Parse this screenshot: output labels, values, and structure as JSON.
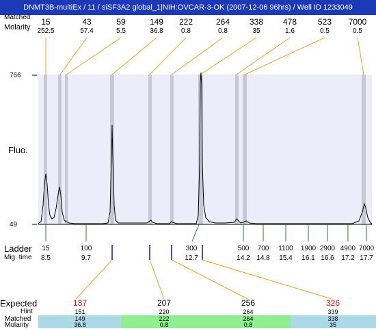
{
  "title": "DNMT3B-multiEx / 11  / siSF3A2 global_1|NIH:OVCAR-3-OK (2007-12-06 96hrs) / Well ID 1233049",
  "header_labels": {
    "matched": "Matched",
    "molarity": "Molarity"
  },
  "y_axis": {
    "top": "766",
    "bottom": "49",
    "label": "Fluo."
  },
  "colors": {
    "title_bg": "#1c39b8",
    "plot_bg": "#ececfa",
    "peak_band": "#c8c8d4",
    "orange": "#f0a020",
    "green": "#208020",
    "blue": "#1010c0",
    "row_blue": "#add8e6",
    "row_green": "#90ee90"
  },
  "peaks": [
    {
      "size": "15",
      "molarity": "252.5"
    },
    {
      "size": "43",
      "molarity": "57.4"
    },
    {
      "size": "59",
      "molarity": "5.5"
    },
    {
      "size": "149",
      "molarity": "36.8"
    },
    {
      "size": "222",
      "molarity": "0.8"
    },
    {
      "size": "264",
      "molarity": "0.8"
    },
    {
      "size": "338",
      "molarity": "35"
    },
    {
      "size": "478",
      "molarity": "1.6"
    },
    {
      "size": "523",
      "molarity": "0.5"
    },
    {
      "size": "7000",
      "molarity": "0.5"
    }
  ],
  "ladder": {
    "label": "Ladder",
    "mig_label": "Mig. time",
    "items": [
      {
        "size": "15",
        "time": "8.5"
      },
      {
        "size": "100",
        "time": "9.7"
      },
      {
        "size": "300",
        "time": "12.7"
      },
      {
        "size": "500",
        "time": "14.2"
      },
      {
        "size": "700",
        "time": "14.8"
      },
      {
        "size": "1100",
        "time": "15.4"
      },
      {
        "size": "1900",
        "time": "16.1"
      },
      {
        "size": "2900",
        "time": "16.6"
      },
      {
        "size": "4900",
        "time": "17.2"
      },
      {
        "size": "7000",
        "time": "17.7"
      }
    ]
  },
  "expected": {
    "labels": {
      "expected": "Expected",
      "hint": "Hint",
      "matched": "Matched",
      "molarity": "Molarity"
    },
    "columns": [
      {
        "expected": "137",
        "hint": "151",
        "matched": "149",
        "molarity": "36.8"
      },
      {
        "expected": "207",
        "hint": "220",
        "matched": "222",
        "molarity": "0.8"
      },
      {
        "expected": "256",
        "hint": "264",
        "matched": "264",
        "molarity": "0.8"
      },
      {
        "expected": "326",
        "hint": "339",
        "matched": "338",
        "molarity": "35"
      }
    ]
  }
}
